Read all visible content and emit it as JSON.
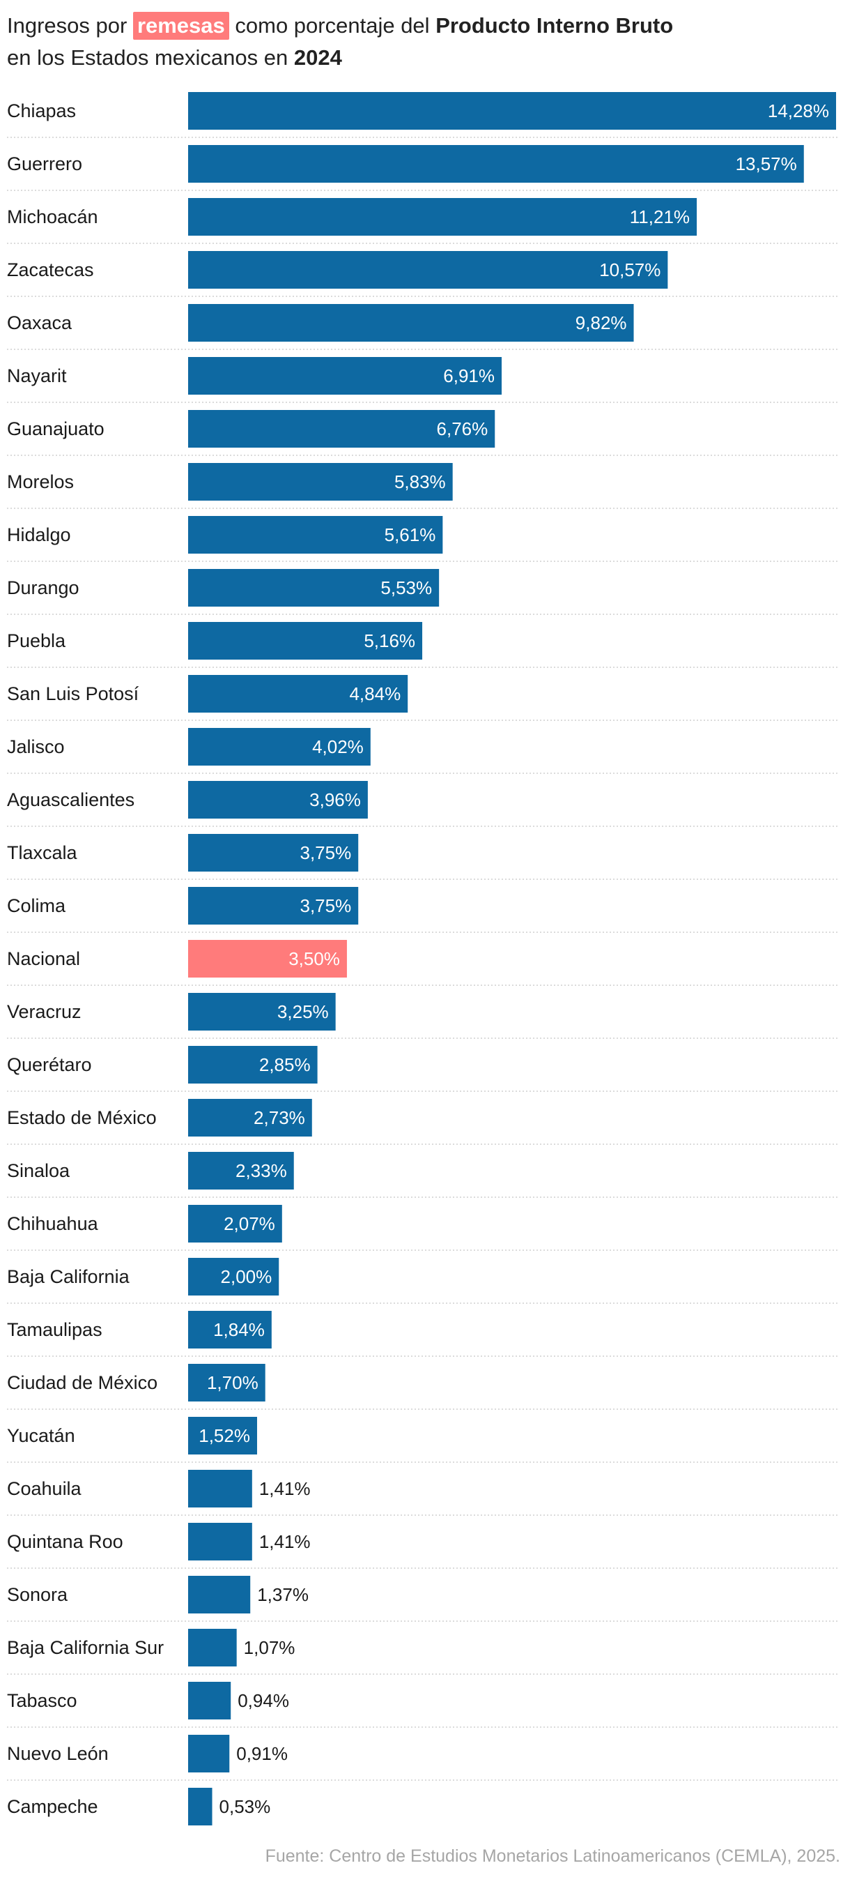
{
  "header": {
    "title_part1": "Ingresos por ",
    "title_highlight": "remesas",
    "title_part2": " como porcentaje del ",
    "title_bold": "Producto Interno Bruto",
    "title_line2": "en los Estados mexicanos en ",
    "title_year": "2024"
  },
  "source": "Fuente: Centro de Estudios Monetarios Latinoamericanos (CEMLA), 2025.",
  "colors": {
    "bar": "#0e69a2",
    "highlight_bar": "#ff7b7b",
    "gridline": "#cfcfcf"
  },
  "chart_data": {
    "type": "bar",
    "orientation": "horizontal",
    "value_suffix": "%",
    "highlight_category": "Nacional",
    "xlim": [
      0,
      14.28
    ],
    "categories": [
      "Chiapas",
      "Guerrero",
      "Michoacán",
      "Zacatecas",
      "Oaxaca",
      "Nayarit",
      "Guanajuato",
      "Morelos",
      "Hidalgo",
      "Durango",
      "Puebla",
      "San Luis Potosí",
      "Jalisco",
      "Aguascalientes",
      "Tlaxcala",
      "Colima",
      "Nacional",
      "Veracruz",
      "Querétaro",
      "Estado de México",
      "Sinaloa",
      "Chihuahua",
      "Baja California",
      "Tamaulipas",
      "Ciudad de México",
      "Yucatán",
      "Coahuila",
      "Quintana Roo",
      "Sonora",
      "Baja California Sur",
      "Tabasco",
      "Nuevo León",
      "Campeche"
    ],
    "values": [
      14.28,
      13.57,
      11.21,
      10.57,
      9.82,
      6.91,
      6.76,
      5.83,
      5.61,
      5.53,
      5.16,
      4.84,
      4.02,
      3.96,
      3.75,
      3.75,
      3.5,
      3.25,
      2.85,
      2.73,
      2.33,
      2.07,
      2.0,
      1.84,
      1.7,
      1.52,
      1.41,
      1.41,
      1.37,
      1.07,
      0.94,
      0.91,
      0.53
    ],
    "labels": [
      "14,28%",
      "13,57%",
      "11,21%",
      "10,57%",
      "9,82%",
      "6,91%",
      "6,76%",
      "5,83%",
      "5,61%",
      "5,53%",
      "5,16%",
      "4,84%",
      "4,02%",
      "3,96%",
      "3,75%",
      "3,75%",
      "3,50%",
      "3,25%",
      "2,85%",
      "2,73%",
      "2,33%",
      "2,07%",
      "2,00%",
      "1,84%",
      "1,70%",
      "1,52%",
      "1,41%",
      "1,41%",
      "1,37%",
      "1,07%",
      "0,94%",
      "0,91%",
      "0,53%"
    ],
    "grid": "dotted row separators"
  }
}
